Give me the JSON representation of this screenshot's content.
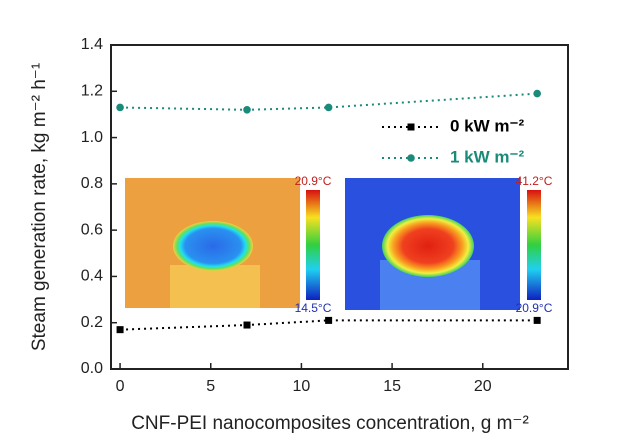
{
  "chart_data": {
    "type": "line",
    "xlabel": "CNF-PEI nanocomposites concentration, g m⁻²",
    "ylabel": "Steam generation rate, kg m⁻² h⁻¹",
    "x": [
      0,
      7,
      11.5,
      23
    ],
    "series": [
      {
        "name": "0 kW m⁻²",
        "color": "#000000",
        "marker": "square",
        "values": [
          0.17,
          0.19,
          0.21,
          0.21
        ]
      },
      {
        "name": "1 kW m⁻²",
        "color": "#1a8a7a",
        "marker": "circle",
        "values": [
          1.13,
          1.12,
          1.13,
          1.19
        ]
      }
    ],
    "xlim": [
      -0.5,
      24.7
    ],
    "ylim": [
      0,
      1.4
    ],
    "xticks": [
      0,
      5,
      10,
      15,
      20
    ],
    "yticks": [
      {
        "value": 0,
        "label": "0.0"
      },
      0.2,
      0.4,
      0.6,
      0.8,
      {
        "value": 1,
        "label": "1.0"
      },
      1.2,
      1.4
    ],
    "legend": "upper-right",
    "insets": [
      {
        "max_label": "20.9°C",
        "min_label": "14.5°C"
      },
      {
        "max_label": "41.2°C",
        "min_label": "20.9°C"
      }
    ]
  }
}
